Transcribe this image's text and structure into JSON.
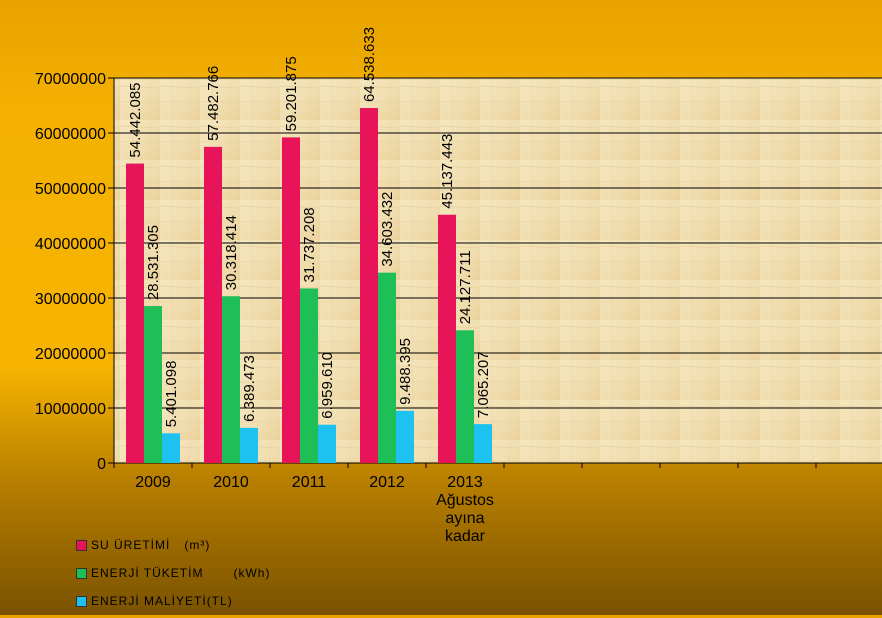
{
  "chart_data": {
    "type": "bar",
    "categories": [
      "2009",
      "2010",
      "2011",
      "2012",
      "2013 Ağustos ayına kadar"
    ],
    "category_lines": [
      [
        "2009"
      ],
      [
        "2010"
      ],
      [
        "2011"
      ],
      [
        "2012"
      ],
      [
        "2013",
        "Ağustos",
        "ayına",
        "kadar"
      ]
    ],
    "series": [
      {
        "name": "SU ÜRETİMİ",
        "unit": "(m³)",
        "color": "#e8145a",
        "values": [
          54442085,
          57482766,
          59201875,
          64538633,
          45137443
        ],
        "labels": [
          "54.442.085",
          "57.482.766",
          "59.201.875",
          "64.538.633",
          "45.137.443"
        ]
      },
      {
        "name": "ENERJİ TÜKETİM",
        "unit": "(kWh)",
        "color": "#1fbf58",
        "values": [
          28531305,
          30318414,
          31737208,
          34603432,
          24127711
        ],
        "labels": [
          "28.531.305",
          "30.318.414",
          "31.737.208",
          "34.603.432",
          "24.127.711"
        ]
      },
      {
        "name": "ENERJİ MALİYETİ",
        "unit": "(TL)",
        "color": "#1ec2f0",
        "values": [
          5401098,
          6389473,
          6959610,
          9488395,
          7065207
        ],
        "labels": [
          "5.401.098",
          "6.389.473",
          "6.959.610",
          "9.488.395",
          "7.065.207"
        ]
      }
    ],
    "yticks": [
      "0",
      "10000000",
      "20000000",
      "30000000",
      "40000000",
      "50000000",
      "60000000",
      "70000000"
    ],
    "ylim": [
      0,
      70000000
    ],
    "grid": true,
    "legend_position": "bottom-left",
    "plot_background": "parchment"
  }
}
